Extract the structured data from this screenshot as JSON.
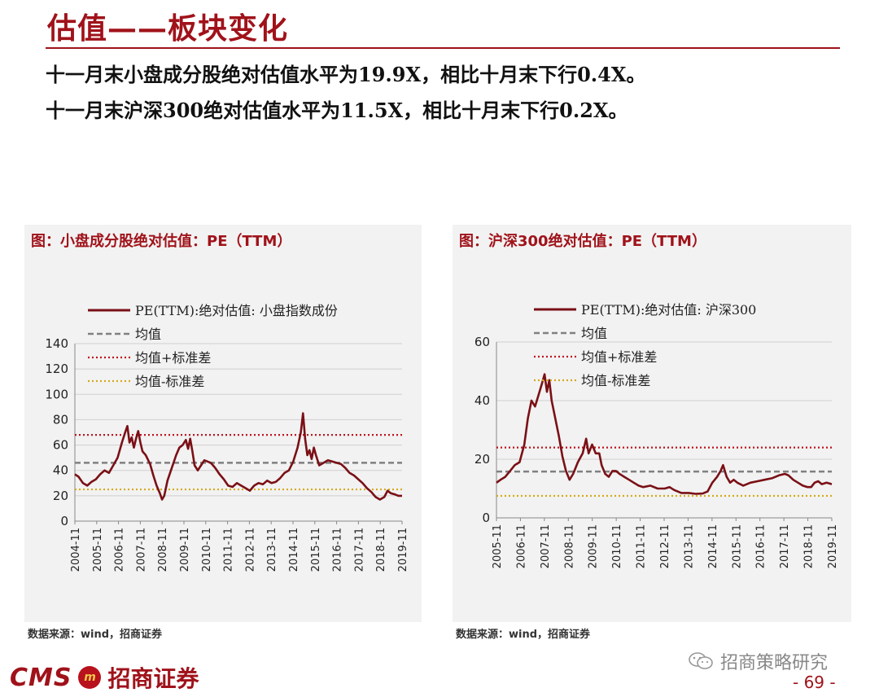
{
  "title": "估值——板块变化",
  "summary": [
    "十一月末小盘成分股绝对估值水平为19.9X，相比十月末下行0.4X。",
    "十一月末沪深300绝对估值水平为11.5X，相比十月末下行0.2X。"
  ],
  "colors": {
    "accent": "#a0121a",
    "series": "#7a1016",
    "mean": "#808080",
    "plus_std": "#c0141e",
    "minus_std": "#d4aa1a",
    "grid": "#d0d0d0",
    "panel_bg": "#f2f2f2"
  },
  "chart_data": [
    {
      "type": "line",
      "caption": "图：小盘成分股绝对估值：PE（TTM）",
      "x_ticks": [
        "2004-11",
        "2005-11",
        "2006-11",
        "2007-11",
        "2008-11",
        "2009-11",
        "2010-11",
        "2011-11",
        "2012-11",
        "2013-11",
        "2014-11",
        "2015-11",
        "2016-11",
        "2017-11",
        "2018-11",
        "2019-11"
      ],
      "xlim": [
        2004.83,
        2019.92
      ],
      "ylim": [
        0,
        140
      ],
      "y_ticks": [
        0,
        20,
        40,
        60,
        80,
        100,
        120,
        140
      ],
      "grid": true,
      "legend_position": "top-left",
      "legend": [
        "PE(TTM):绝对估值: 小盘指数成份",
        "均值",
        "均值+标准差",
        "均值-标准差"
      ],
      "reference_lines": {
        "mean": 46,
        "plus_std": 68,
        "minus_std": 25
      },
      "series": [
        {
          "name": "PE(TTM):绝对估值: 小盘指数成份",
          "points": [
            [
              2004.83,
              37
            ],
            [
              2005.0,
              35
            ],
            [
              2005.2,
              30
            ],
            [
              2005.4,
              28
            ],
            [
              2005.6,
              31
            ],
            [
              2005.8,
              33
            ],
            [
              2006.0,
              37
            ],
            [
              2006.2,
              40
            ],
            [
              2006.4,
              38
            ],
            [
              2006.6,
              44
            ],
            [
              2006.8,
              50
            ],
            [
              2007.0,
              62
            ],
            [
              2007.15,
              70
            ],
            [
              2007.25,
              75
            ],
            [
              2007.35,
              62
            ],
            [
              2007.45,
              66
            ],
            [
              2007.55,
              58
            ],
            [
              2007.65,
              65
            ],
            [
              2007.75,
              71
            ],
            [
              2007.85,
              62
            ],
            [
              2007.95,
              55
            ],
            [
              2008.1,
              52
            ],
            [
              2008.3,
              45
            ],
            [
              2008.45,
              36
            ],
            [
              2008.6,
              28
            ],
            [
              2008.75,
              22
            ],
            [
              2008.85,
              17
            ],
            [
              2008.95,
              20
            ],
            [
              2009.1,
              32
            ],
            [
              2009.3,
              42
            ],
            [
              2009.5,
              52
            ],
            [
              2009.65,
              58
            ],
            [
              2009.8,
              60
            ],
            [
              2009.95,
              64
            ],
            [
              2010.05,
              57
            ],
            [
              2010.15,
              65
            ],
            [
              2010.25,
              55
            ],
            [
              2010.35,
              44
            ],
            [
              2010.5,
              40
            ],
            [
              2010.65,
              44
            ],
            [
              2010.8,
              48
            ],
            [
              2010.95,
              47
            ],
            [
              2011.1,
              46
            ],
            [
              2011.3,
              42
            ],
            [
              2011.5,
              37
            ],
            [
              2011.7,
              33
            ],
            [
              2011.9,
              28
            ],
            [
              2012.1,
              27
            ],
            [
              2012.3,
              30
            ],
            [
              2012.5,
              28
            ],
            [
              2012.7,
              26
            ],
            [
              2012.9,
              24
            ],
            [
              2013.1,
              28
            ],
            [
              2013.3,
              30
            ],
            [
              2013.5,
              29
            ],
            [
              2013.7,
              32
            ],
            [
              2013.9,
              30
            ],
            [
              2014.1,
              31
            ],
            [
              2014.3,
              34
            ],
            [
              2014.5,
              38
            ],
            [
              2014.7,
              40
            ],
            [
              2014.9,
              47
            ],
            [
              2015.1,
              58
            ],
            [
              2015.25,
              70
            ],
            [
              2015.35,
              85
            ],
            [
              2015.45,
              65
            ],
            [
              2015.55,
              52
            ],
            [
              2015.65,
              56
            ],
            [
              2015.75,
              49
            ],
            [
              2015.85,
              58
            ],
            [
              2015.95,
              52
            ],
            [
              2016.1,
              44
            ],
            [
              2016.3,
              46
            ],
            [
              2016.5,
              48
            ],
            [
              2016.7,
              47
            ],
            [
              2016.9,
              46
            ],
            [
              2017.1,
              45
            ],
            [
              2017.3,
              42
            ],
            [
              2017.5,
              38
            ],
            [
              2017.7,
              36
            ],
            [
              2017.9,
              33
            ],
            [
              2018.1,
              30
            ],
            [
              2018.3,
              26
            ],
            [
              2018.5,
              23
            ],
            [
              2018.7,
              19
            ],
            [
              2018.9,
              17
            ],
            [
              2019.1,
              19
            ],
            [
              2019.25,
              24
            ],
            [
              2019.4,
              22
            ],
            [
              2019.6,
              21
            ],
            [
              2019.75,
              20
            ],
            [
              2019.92,
              20
            ]
          ]
        }
      ]
    },
    {
      "type": "line",
      "caption": "图：沪深300绝对估值：PE（TTM）",
      "x_ticks": [
        "2005-11",
        "2006-11",
        "2007-11",
        "2008-11",
        "2009-11",
        "2010-11",
        "2011-11",
        "2012-11",
        "2013-11",
        "2014-11",
        "2015-11",
        "2016-11",
        "2017-11",
        "2018-11",
        "2019-11"
      ],
      "xlim": [
        2005.83,
        2019.92
      ],
      "ylim": [
        0,
        60
      ],
      "y_ticks": [
        0,
        20,
        40,
        60
      ],
      "grid": true,
      "legend_position": "top-left",
      "legend": [
        "PE(TTM):绝对估值: 沪深300",
        "均值",
        "均值+标准差",
        "均值-标准差"
      ],
      "reference_lines": {
        "mean": 15.8,
        "plus_std": 24,
        "minus_std": 7.5
      },
      "series": [
        {
          "name": "PE(TTM):绝对估值: 沪深300",
          "points": [
            [
              2005.83,
              12
            ],
            [
              2006.0,
              13
            ],
            [
              2006.2,
              14
            ],
            [
              2006.4,
              16
            ],
            [
              2006.6,
              18
            ],
            [
              2006.8,
              19
            ],
            [
              2007.0,
              25
            ],
            [
              2007.15,
              34
            ],
            [
              2007.3,
              40
            ],
            [
              2007.45,
              38
            ],
            [
              2007.6,
              42
            ],
            [
              2007.75,
              46
            ],
            [
              2007.85,
              49
            ],
            [
              2007.95,
              43
            ],
            [
              2008.05,
              47
            ],
            [
              2008.15,
              40
            ],
            [
              2008.3,
              34
            ],
            [
              2008.45,
              28
            ],
            [
              2008.6,
              21
            ],
            [
              2008.75,
              16
            ],
            [
              2008.9,
              13
            ],
            [
              2009.05,
              15
            ],
            [
              2009.25,
              19
            ],
            [
              2009.45,
              22
            ],
            [
              2009.6,
              27
            ],
            [
              2009.7,
              22
            ],
            [
              2009.85,
              25
            ],
            [
              2010.0,
              22
            ],
            [
              2010.15,
              22
            ],
            [
              2010.25,
              18
            ],
            [
              2010.4,
              15
            ],
            [
              2010.55,
              14
            ],
            [
              2010.7,
              16
            ],
            [
              2010.85,
              16
            ],
            [
              2011.0,
              15
            ],
            [
              2011.2,
              14
            ],
            [
              2011.4,
              13
            ],
            [
              2011.6,
              12
            ],
            [
              2011.8,
              11
            ],
            [
              2012.0,
              10.5
            ],
            [
              2012.3,
              11
            ],
            [
              2012.6,
              10
            ],
            [
              2012.9,
              10
            ],
            [
              2013.1,
              10.5
            ],
            [
              2013.3,
              9.5
            ],
            [
              2013.6,
              8.5
            ],
            [
              2013.9,
              8.5
            ],
            [
              2014.2,
              8.2
            ],
            [
              2014.5,
              8.3
            ],
            [
              2014.7,
              9
            ],
            [
              2014.9,
              12
            ],
            [
              2015.1,
              14
            ],
            [
              2015.25,
              16
            ],
            [
              2015.35,
              18
            ],
            [
              2015.5,
              14
            ],
            [
              2015.65,
              12
            ],
            [
              2015.8,
              13
            ],
            [
              2015.95,
              12
            ],
            [
              2016.2,
              11
            ],
            [
              2016.5,
              12
            ],
            [
              2016.8,
              12.5
            ],
            [
              2017.1,
              13
            ],
            [
              2017.4,
              13.5
            ],
            [
              2017.7,
              14.5
            ],
            [
              2017.95,
              15
            ],
            [
              2018.1,
              14.5
            ],
            [
              2018.3,
              13
            ],
            [
              2018.5,
              12
            ],
            [
              2018.7,
              11
            ],
            [
              2018.9,
              10.5
            ],
            [
              2019.05,
              10.5
            ],
            [
              2019.2,
              12
            ],
            [
              2019.35,
              12.5
            ],
            [
              2019.5,
              11.5
            ],
            [
              2019.7,
              12
            ],
            [
              2019.92,
              11.5
            ]
          ]
        }
      ]
    }
  ],
  "source_left": "数据来源：wind，招商证券",
  "source_right": "数据来源：wind，招商证券",
  "logo": {
    "cms": "CMS",
    "badge": "m",
    "name": "招商证券"
  },
  "wechat_account": "招商策略研究",
  "page_number": "- 69 -"
}
